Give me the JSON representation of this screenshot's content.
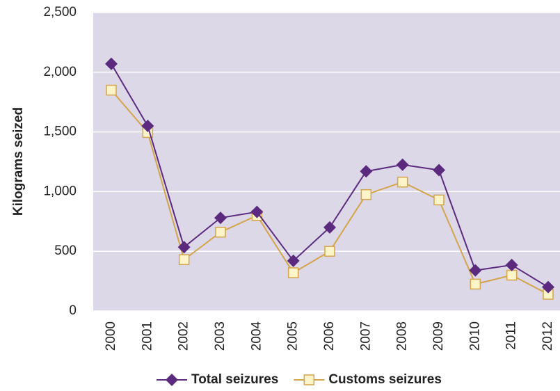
{
  "chart_data": {
    "type": "line",
    "y_label": "Kilograms seized",
    "categories": [
      "2000",
      "2001",
      "2002",
      "2003",
      "2004",
      "2005",
      "2006",
      "2007",
      "2008",
      "2009",
      "2010",
      "2011",
      "2012"
    ],
    "series": [
      {
        "name": "Total seizures",
        "color": "#5b2a7e",
        "marker": "diamond",
        "values": [
          2070,
          1550,
          535,
          780,
          830,
          420,
          700,
          1170,
          1225,
          1180,
          340,
          385,
          200
        ]
      },
      {
        "name": "Customs seizures",
        "color": "#d4a44a",
        "marker": "square",
        "marker_fill": "#fdf5c9",
        "values": [
          1850,
          1495,
          430,
          660,
          800,
          320,
          500,
          975,
          1080,
          930,
          225,
          300,
          140
        ]
      }
    ],
    "ylim": [
      0,
      2500
    ],
    "yticks": [
      0,
      500,
      {
        "value": 1000,
        "label": "1,000"
      },
      {
        "value": 1500,
        "label": "1,500"
      },
      {
        "value": 2000,
        "label": "2,000"
      },
      {
        "value": 2500,
        "label": "2,500"
      }
    ],
    "grid": true,
    "plot_background": "#dcd8e8",
    "legend": "bottom"
  }
}
